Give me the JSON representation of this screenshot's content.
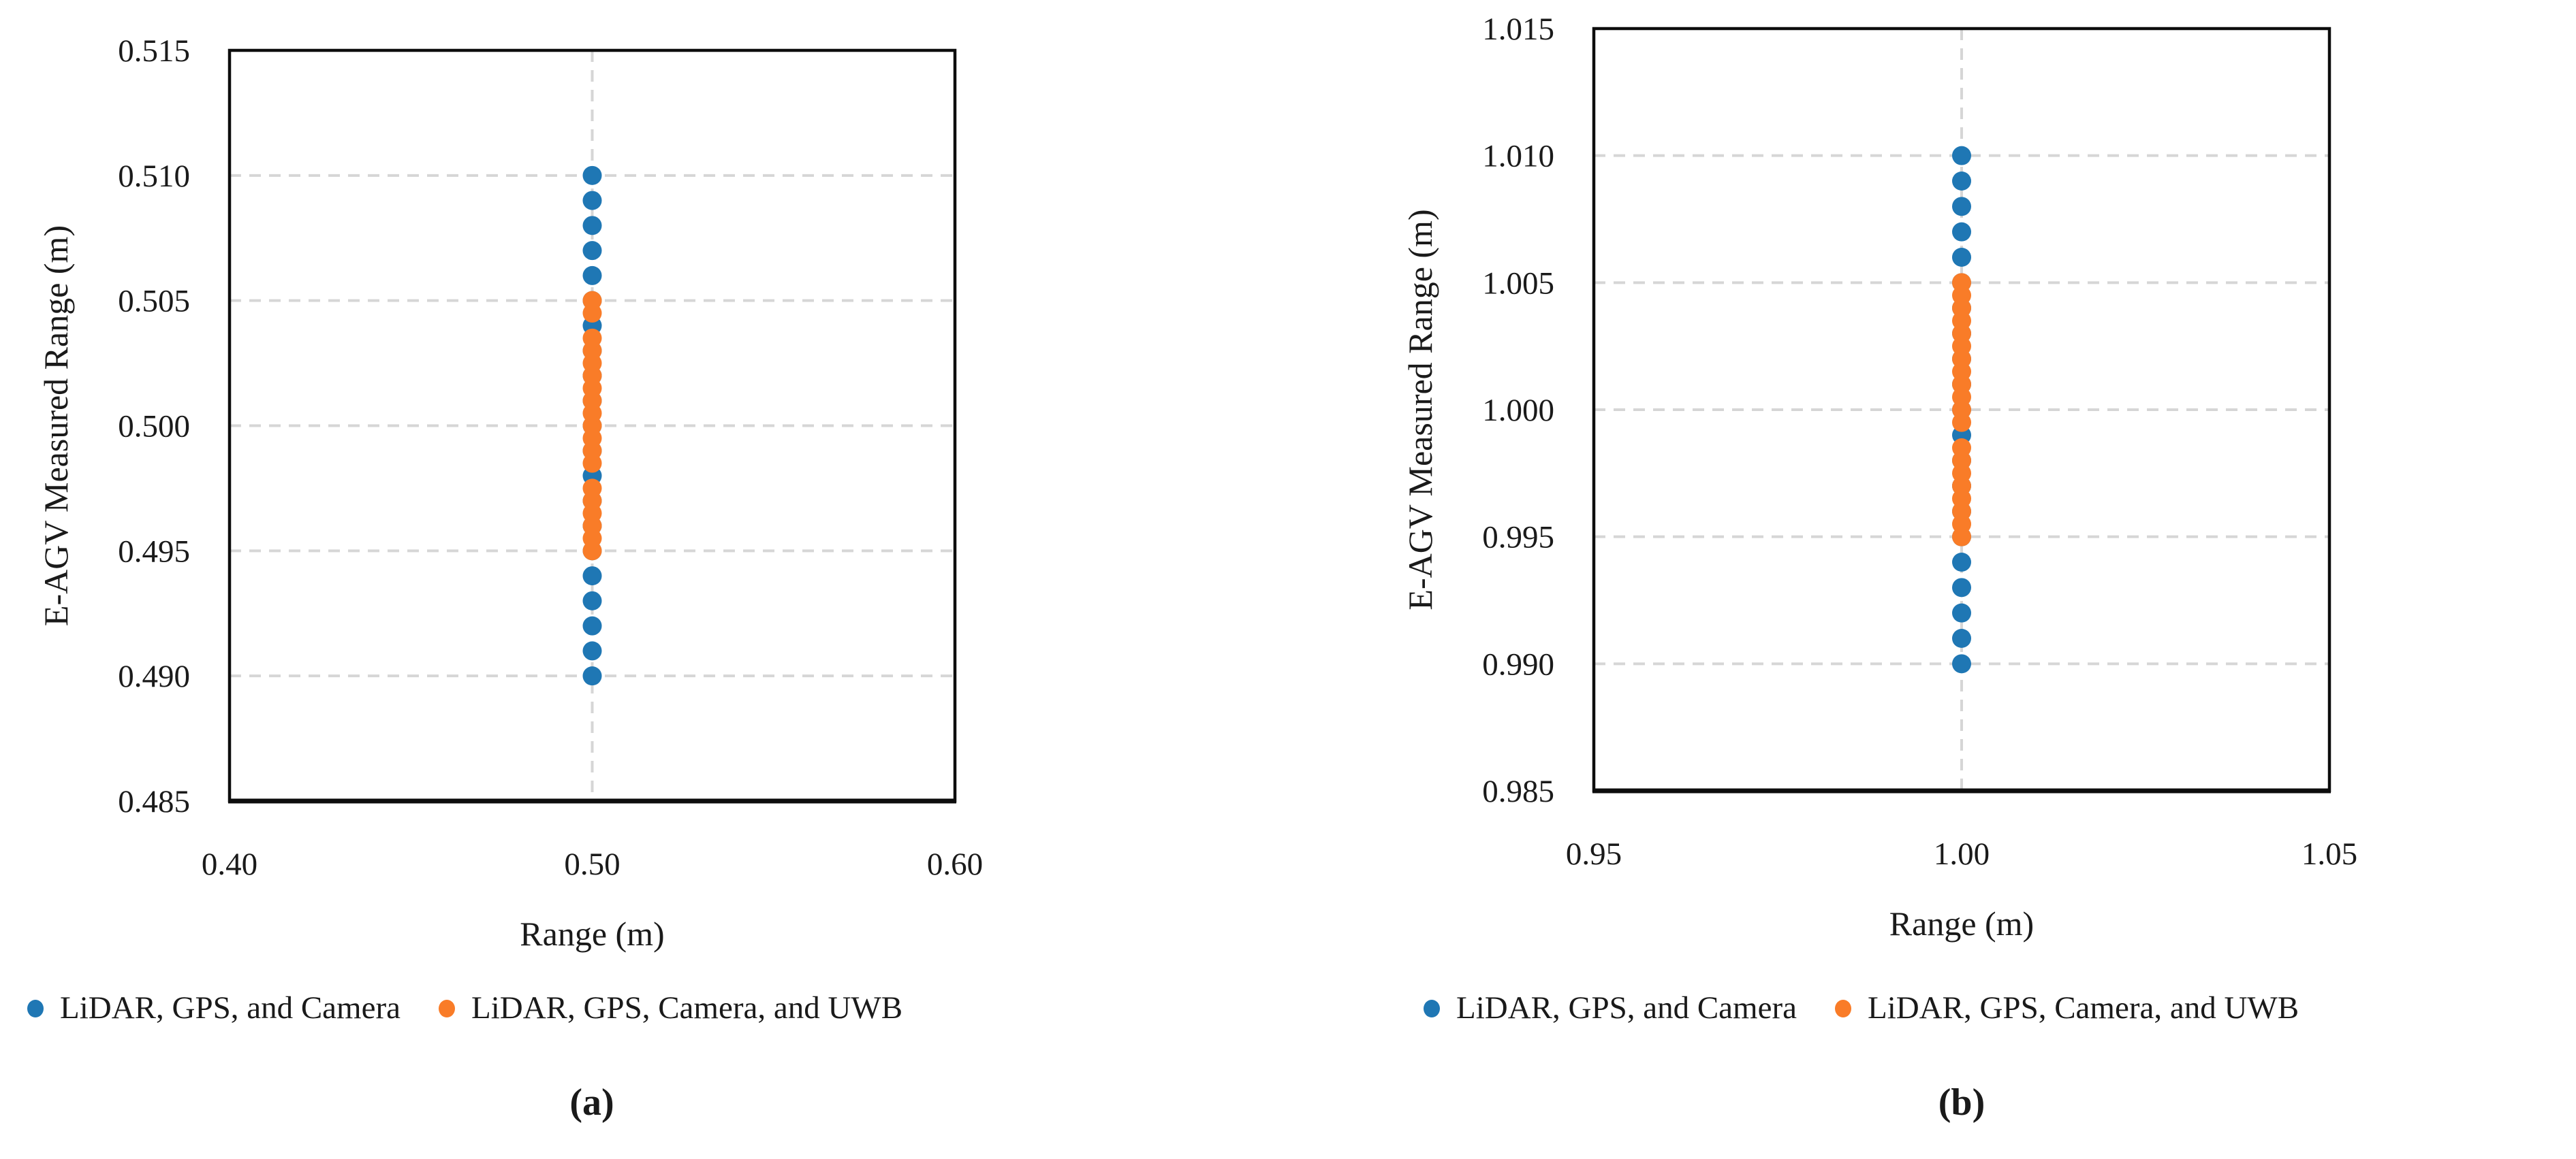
{
  "figure": {
    "panels": [
      {
        "id": "a",
        "caption": "(a)"
      },
      {
        "id": "b",
        "caption": "(b)"
      }
    ]
  },
  "style": {
    "blue": "#1F77B4",
    "orange": "#F97C28",
    "grid_color": "#D6D6D6",
    "axis_color": "#0d0d0d"
  },
  "chart_data": [
    {
      "type": "scatter",
      "title": "",
      "xlabel": "Range (m)",
      "ylabel": "E-AGV Measured Range (m)",
      "xlim": [
        0.4,
        0.6
      ],
      "ylim": [
        0.485,
        0.515
      ],
      "xticks": [
        "0.40",
        "0.50",
        "0.60"
      ],
      "yticks": [
        "0.485",
        "0.490",
        "0.495",
        "0.500",
        "0.505",
        "0.510",
        "0.515"
      ],
      "grid": "dashed horizontal at y ticks, dashed vertical at x=0.50",
      "legend_position": "bottom-left",
      "series": [
        {
          "name": "LiDAR, GPS, and Camera",
          "color": "#1F77B4",
          "x": 0.5,
          "y": [
            0.49,
            0.491,
            0.492,
            0.493,
            0.494,
            0.495,
            0.496,
            0.497,
            0.498,
            0.499,
            0.5,
            0.501,
            0.502,
            0.503,
            0.504,
            0.505,
            0.506,
            0.507,
            0.508,
            0.509,
            0.51
          ]
        },
        {
          "name": "LiDAR, GPS, Camera, and UWB",
          "color": "#F97C28",
          "x": 0.5,
          "y": [
            0.495,
            0.4955,
            0.496,
            0.4965,
            0.497,
            0.4975,
            0.4985,
            0.499,
            0.4995,
            0.5,
            0.5005,
            0.501,
            0.5015,
            0.502,
            0.5025,
            0.503,
            0.5035,
            0.5045,
            0.505
          ]
        }
      ]
    },
    {
      "type": "scatter",
      "title": "",
      "xlabel": "Range (m)",
      "ylabel": "E-AGV Measured Range (m)",
      "xlim": [
        0.95,
        1.05
      ],
      "ylim": [
        0.985,
        1.015
      ],
      "xticks": [
        "0.95",
        "1.00",
        "1.05"
      ],
      "yticks": [
        "0.985",
        "0.990",
        "0.995",
        "1.000",
        "1.005",
        "1.010",
        "1.015"
      ],
      "grid": "dashed horizontal at y ticks, dashed vertical at x=1.00",
      "legend_position": "bottom-left",
      "series": [
        {
          "name": "LiDAR, GPS, and Camera",
          "color": "#1F77B4",
          "x": 1.0,
          "y": [
            0.99,
            0.991,
            0.992,
            0.993,
            0.994,
            0.995,
            0.996,
            0.997,
            0.998,
            0.999,
            1.0,
            1.001,
            1.002,
            1.003,
            1.004,
            1.005,
            1.006,
            1.007,
            1.008,
            1.009,
            1.01
          ]
        },
        {
          "name": "LiDAR, GPS, Camera, and UWB",
          "color": "#F97C28",
          "x": 1.0,
          "y": [
            0.995,
            0.9955,
            0.996,
            0.9965,
            0.997,
            0.9975,
            0.998,
            0.9985,
            0.9995,
            1.0,
            1.0005,
            1.001,
            1.0015,
            1.002,
            1.0025,
            1.003,
            1.0035,
            1.004,
            1.0045,
            1.005
          ]
        }
      ]
    }
  ]
}
